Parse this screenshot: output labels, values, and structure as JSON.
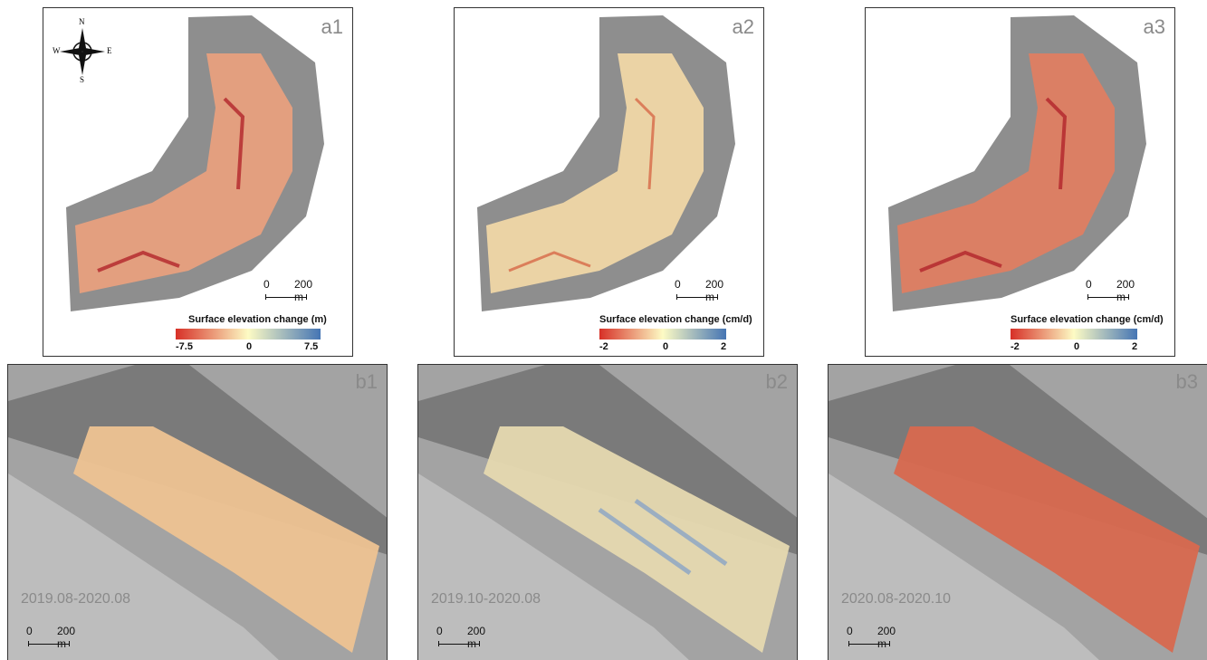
{
  "panels_top": [
    {
      "id": "a1",
      "label": "a1",
      "legend_title": "Surface elevation change (m)",
      "legend_min": "-7.5",
      "legend_mid": "0",
      "legend_max": "7.5",
      "scale_0": "0",
      "scale_1": "200  m",
      "tint": "#e8a07e"
    },
    {
      "id": "a2",
      "label": "a2",
      "legend_title": "Surface elevation change (cm/d)",
      "legend_min": "-2",
      "legend_mid": "0",
      "legend_max": "2",
      "scale_0": "0",
      "scale_1": "200  m",
      "tint": "#f0d7a6"
    },
    {
      "id": "a3",
      "label": "a3",
      "legend_title": "Surface elevation change (cm/d)",
      "legend_min": "-2",
      "legend_mid": "0",
      "legend_max": "2",
      "scale_0": "0",
      "scale_1": "200  m",
      "tint": "#df7e62"
    }
  ],
  "panels_bottom": [
    {
      "id": "b1",
      "label": "b1",
      "date": "2019.08-2020.08",
      "scale_0": "0",
      "scale_1": "200  m",
      "tint": "#eec392"
    },
    {
      "id": "b2",
      "label": "b2",
      "date": "2019.10-2020.08",
      "scale_0": "0",
      "scale_1": "200  m",
      "tint": "#e6d9b0"
    },
    {
      "id": "b3",
      "label": "b3",
      "date": "2020.08-2020.10",
      "scale_0": "0",
      "scale_1": "200  m",
      "tint": "#d8694f"
    }
  ],
  "compass": {
    "n": "N",
    "s": "S",
    "e": "E",
    "w": "W"
  },
  "colors": {
    "negative": "#d73027",
    "neutral": "#fdfbc4",
    "positive": "#4575b4",
    "hillshade": "#9a9a9a"
  }
}
